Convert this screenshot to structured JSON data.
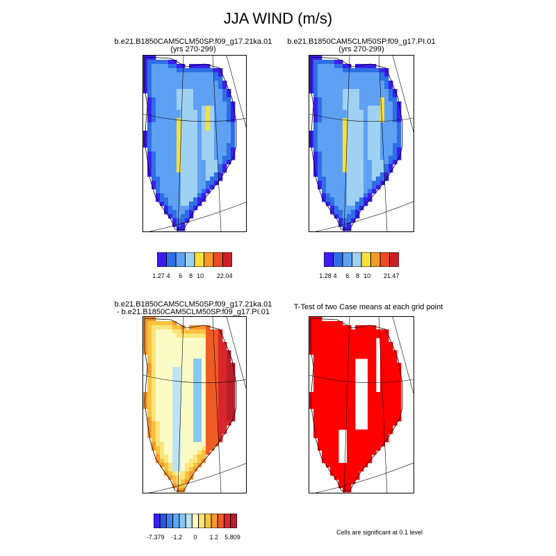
{
  "figure": {
    "title": "JJA WIND (m/s)",
    "note": "Cells are significant at 0.1 level"
  },
  "chart_data": [
    {
      "type": "heatmap",
      "panel": "top-left",
      "title_lines": [
        "b.e21.B1850CAM5CLM50SP.f09_g17.21ka.01",
        "(yrs 270-299)"
      ],
      "colorbar": {
        "colors": [
          "#3a1ef0",
          "#2f6fe6",
          "#5ea0f2",
          "#9fd1f2",
          "#f7e03c",
          "#f59a2a",
          "#ee4a25",
          "#cc2027"
        ],
        "labels": [
          "1.27",
          "4",
          "6",
          "8",
          "10",
          "22.04"
        ],
        "min": 1.27,
        "max": 22.04,
        "levels": [
          4,
          6,
          8,
          10
        ]
      },
      "field_description": "Greenland mean JJA wind speed; low values (purple) at coast, 6-8 m/s interior, yellow bands (10+) along central ridge"
    },
    {
      "type": "heatmap",
      "panel": "top-right",
      "title_lines": [
        "b.e21.B1850CAM5CLM50SP.f09_g17.PI.01",
        "(yrs 270-299)"
      ],
      "colorbar": {
        "colors": [
          "#3a1ef0",
          "#2f6fe6",
          "#5ea0f2",
          "#9fd1f2",
          "#f7e03c",
          "#f59a2a",
          "#ee4a25",
          "#cc2027"
        ],
        "labels": [
          "1.28",
          "4",
          "6",
          "8",
          "10",
          "21.47"
        ],
        "min": 1.28,
        "max": 21.47,
        "levels": [
          4,
          6,
          8,
          10
        ]
      }
    },
    {
      "type": "heatmap",
      "panel": "bottom-left",
      "title_lines": [
        "b.e21.B1850CAM5CLM50SP.f09_g17.21ka.01",
        "- b.e21.B1850CAM5CLM50SP.f09_g17.PI.01"
      ],
      "colorbar": {
        "colors": [
          "#3a1ef0",
          "#2d54ea",
          "#3f82ee",
          "#5ea9f4",
          "#87c8f4",
          "#bfe3f3",
          "#fbfbc6",
          "#fbe57a",
          "#f9c23e",
          "#f7972e",
          "#ef5b25",
          "#d9262a",
          "#b81d2a"
        ],
        "labels": [
          "-7.379",
          "-1.2",
          "0",
          "1.2",
          "5.809"
        ],
        "min": -7.379,
        "max": 5.809
      }
    },
    {
      "type": "heatmap",
      "panel": "bottom-right",
      "title_lines": [
        "T-Test of two Case means at each grid point"
      ],
      "significance_color": "#ff0000"
    }
  ]
}
